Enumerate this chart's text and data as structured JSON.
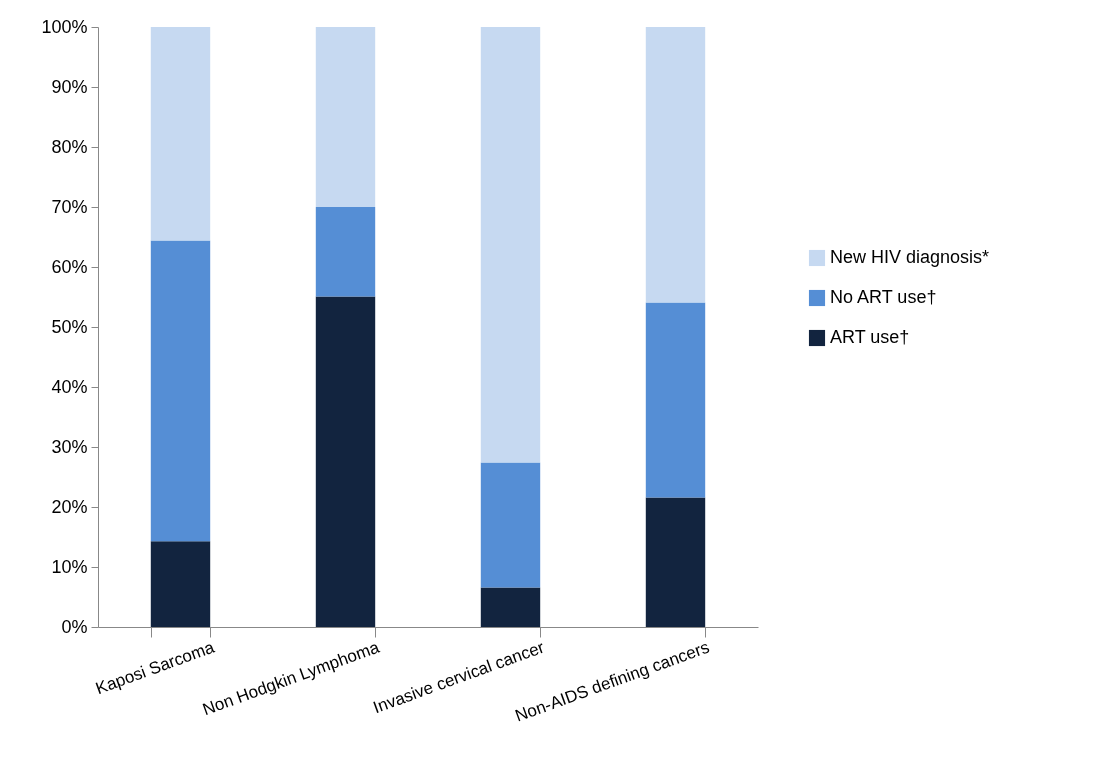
{
  "chart_data": {
    "type": "bar",
    "stacked": true,
    "categories": [
      "Kaposi Sarcoma",
      "Non Hodgkin Lymphoma",
      "Invasive cervical cancer",
      "Non-AIDS defining cancers"
    ],
    "series": [
      {
        "name": "ART use†",
        "color": "#12243f",
        "values": [
          14.3,
          55.1,
          6.6,
          21.6
        ]
      },
      {
        "name": "No ART use†",
        "color": "#558ed5",
        "values": [
          50.1,
          14.9,
          20.8,
          32.5
        ]
      },
      {
        "name": "New HIV diagnosis*",
        "color": "#c6d9f1",
        "values": [
          35.6,
          30.0,
          72.6,
          45.9
        ]
      }
    ],
    "ylim": [
      0,
      100
    ],
    "yticks": [
      {
        "value": 0,
        "label": "0%"
      },
      {
        "value": 10,
        "label": "10%"
      },
      {
        "value": 20,
        "label": "20%"
      },
      {
        "value": 30,
        "label": "30%"
      },
      {
        "value": 40,
        "label": "40%"
      },
      {
        "value": 50,
        "label": "50%"
      },
      {
        "value": 60,
        "label": "60%"
      },
      {
        "value": 70,
        "label": "70%"
      },
      {
        "value": 80,
        "label": "80%"
      },
      {
        "value": 90,
        "label": "90%"
      },
      {
        "value": 100,
        "label": "100%"
      }
    ],
    "grid": false,
    "legend": "right"
  }
}
